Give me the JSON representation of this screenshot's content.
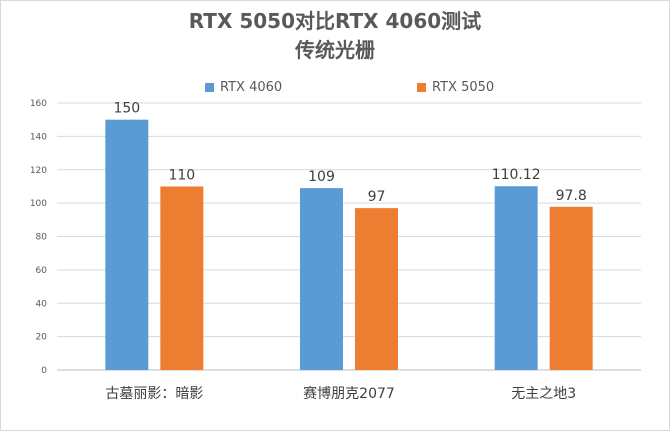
{
  "chart_data": {
    "type": "bar",
    "title_line1": "RTX 5050对比RTX 4060测试",
    "title_line2": "传统光栅",
    "categories": [
      "古墓丽影：暗影",
      "赛博朋克2077",
      "无主之地3"
    ],
    "series": [
      {
        "name": "RTX 4060",
        "color": "#5b9bd5",
        "values": [
          150,
          109,
          110.12
        ],
        "labels": [
          "150",
          "109",
          "110.12"
        ]
      },
      {
        "name": "RTX 5050",
        "color": "#ed7d31",
        "values": [
          110,
          97,
          97.8
        ],
        "labels": [
          "110",
          "97",
          "97.8"
        ]
      }
    ],
    "ylim": [
      0,
      160
    ],
    "yticks": [
      0,
      20,
      40,
      60,
      80,
      100,
      120,
      140,
      160
    ],
    "grid": true,
    "legend_position": "top"
  }
}
